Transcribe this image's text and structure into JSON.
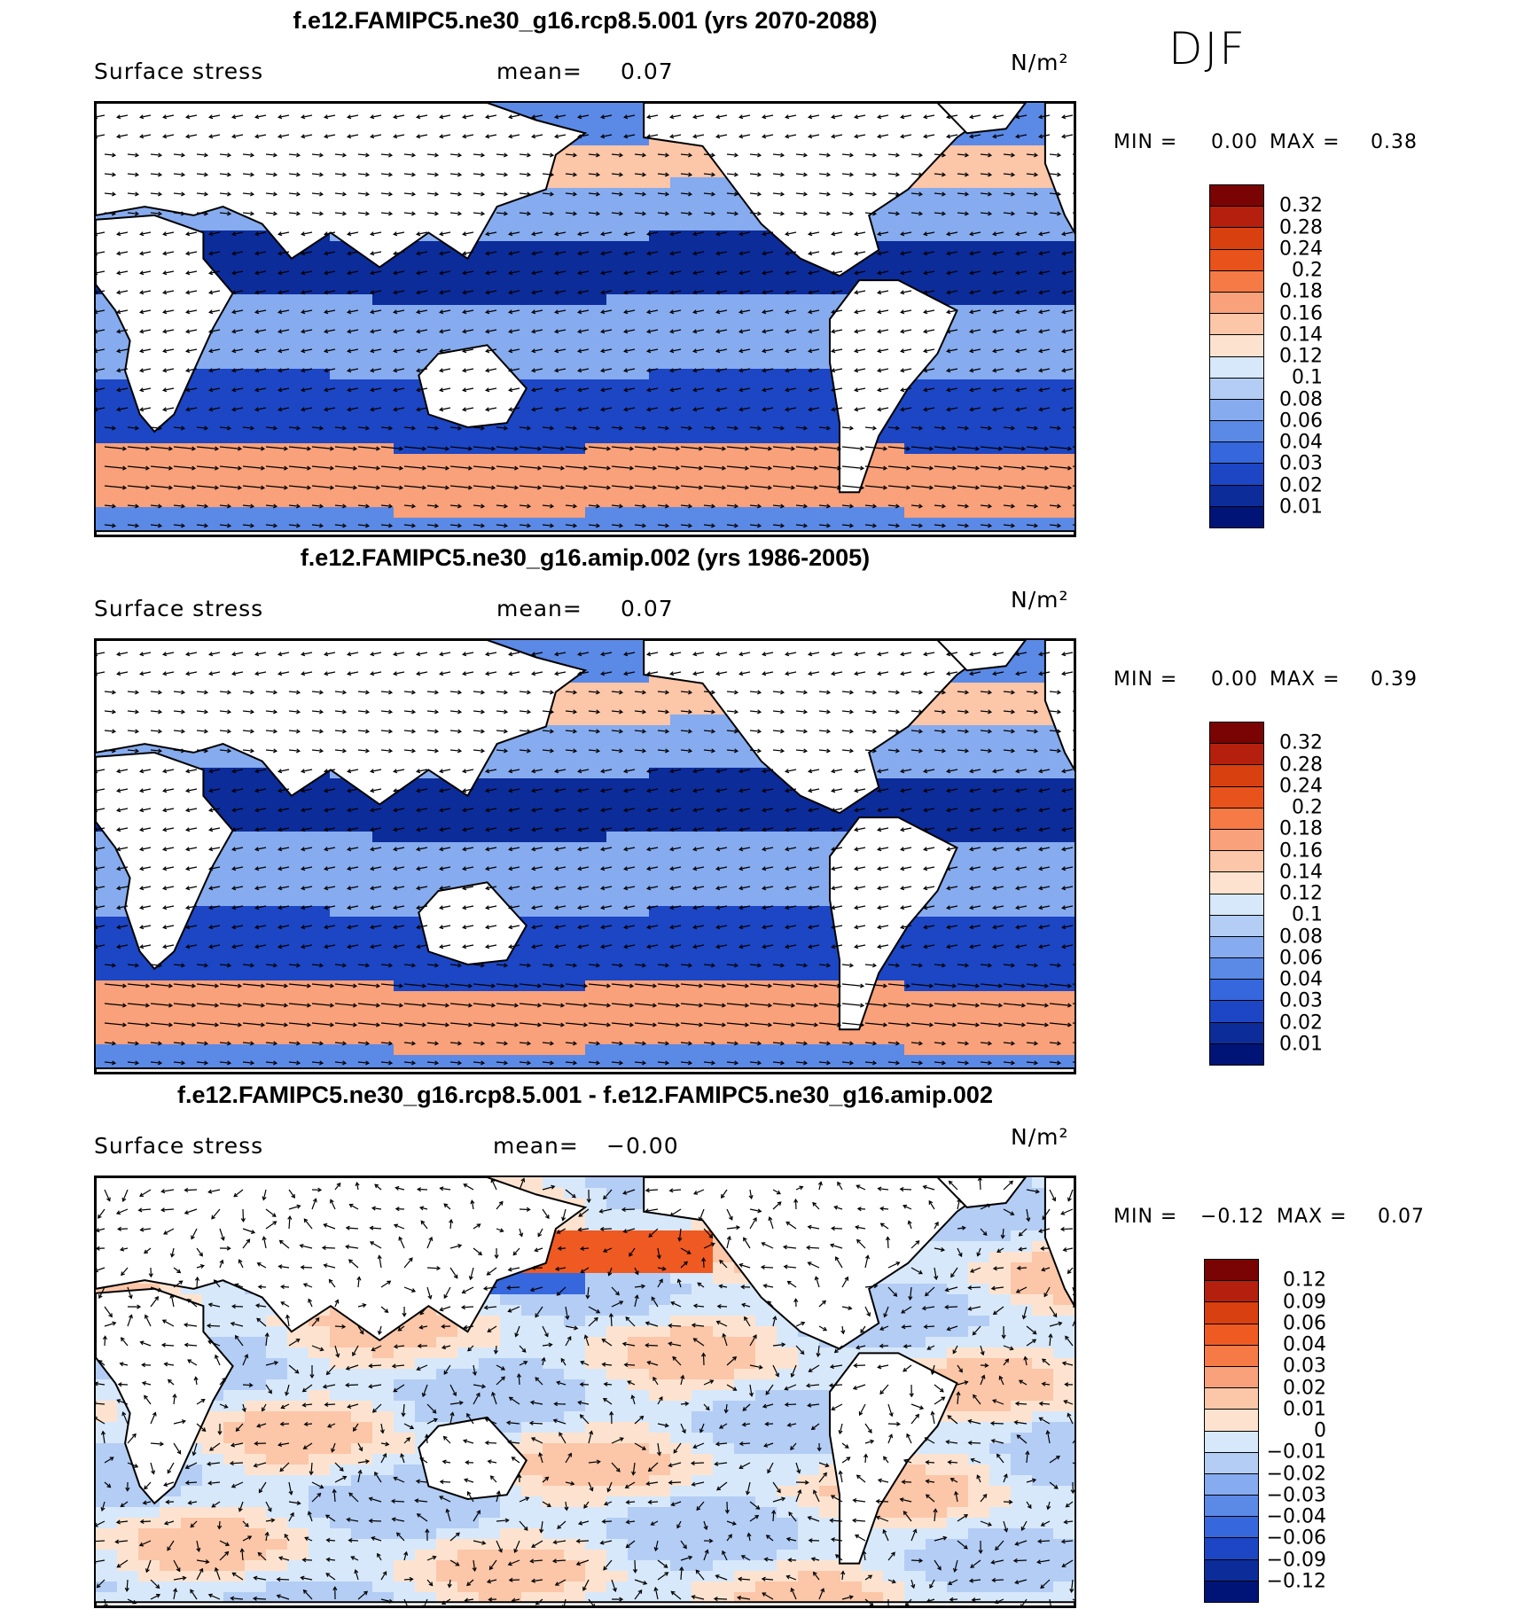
{
  "season": "DJF",
  "panels": [
    {
      "title": "f.e12.FAMIPC5.ne30_g16.rcp8.5.001 (yrs 2070-2088)",
      "variable": "Surface stress",
      "mean_label": "mean=",
      "mean_value": "0.07",
      "units": "N/m²",
      "min_label": "MIN =",
      "min_value": "0.00",
      "max_label": "MAX =",
      "max_value": "0.38",
      "colorbar_labels": [
        "0.32",
        "0.28",
        "0.24",
        "0.2",
        "0.18",
        "0.16",
        "0.14",
        "0.12",
        "0.1",
        "0.08",
        "0.06",
        "0.04",
        "0.03",
        "0.02",
        "0.01"
      ],
      "field_kind": "mean"
    },
    {
      "title": "f.e12.FAMIPC5.ne30_g16.amip.002 (yrs 1986-2005)",
      "variable": "Surface stress",
      "mean_label": "mean=",
      "mean_value": "0.07",
      "units": "N/m²",
      "min_label": "MIN =",
      "min_value": "0.00",
      "max_label": "MAX =",
      "max_value": "0.39",
      "colorbar_labels": [
        "0.32",
        "0.28",
        "0.24",
        "0.2",
        "0.18",
        "0.16",
        "0.14",
        "0.12",
        "0.1",
        "0.08",
        "0.06",
        "0.04",
        "0.03",
        "0.02",
        "0.01"
      ],
      "field_kind": "mean"
    },
    {
      "title": "f.e12.FAMIPC5.ne30_g16.rcp8.5.001 - f.e12.FAMIPC5.ne30_g16.amip.002",
      "variable": "Surface stress",
      "mean_label": "mean=",
      "mean_value": "−0.00",
      "units": "N/m²",
      "min_label": "MIN =",
      "min_value": "−0.12",
      "max_label": "MAX =",
      "max_value": "0.07",
      "colorbar_labels": [
        "0.12",
        "0.09",
        "0.06",
        "0.04",
        "0.03",
        "0.02",
        "0.01",
        "0",
        "−0.01",
        "−0.02",
        "−0.03",
        "−0.04",
        "−0.06",
        "−0.09",
        "−0.12"
      ],
      "field_kind": "diff"
    }
  ],
  "colors": {
    "mean_scale": [
      "#7a0403",
      "#b4200d",
      "#d8400f",
      "#e8531b",
      "#f57a45",
      "#f9a17a",
      "#fcc6a8",
      "#fde3cf",
      "#d7e8fa",
      "#b3cdf5",
      "#86abee",
      "#5b89e6",
      "#3667dc",
      "#1c46c3",
      "#0c2c9a",
      "#001478"
    ],
    "diff_scale": [
      "#7a0403",
      "#b4200d",
      "#d8400f",
      "#ef5a22",
      "#f57a45",
      "#f9a17a",
      "#fcc6a8",
      "#fde3cf",
      "#d7e8fa",
      "#b3cdf5",
      "#86abee",
      "#5b89e6",
      "#3667dc",
      "#1c46c3",
      "#0c2c9a",
      "#001478"
    ],
    "land": "#ffffff",
    "coastline": "#000000"
  }
}
